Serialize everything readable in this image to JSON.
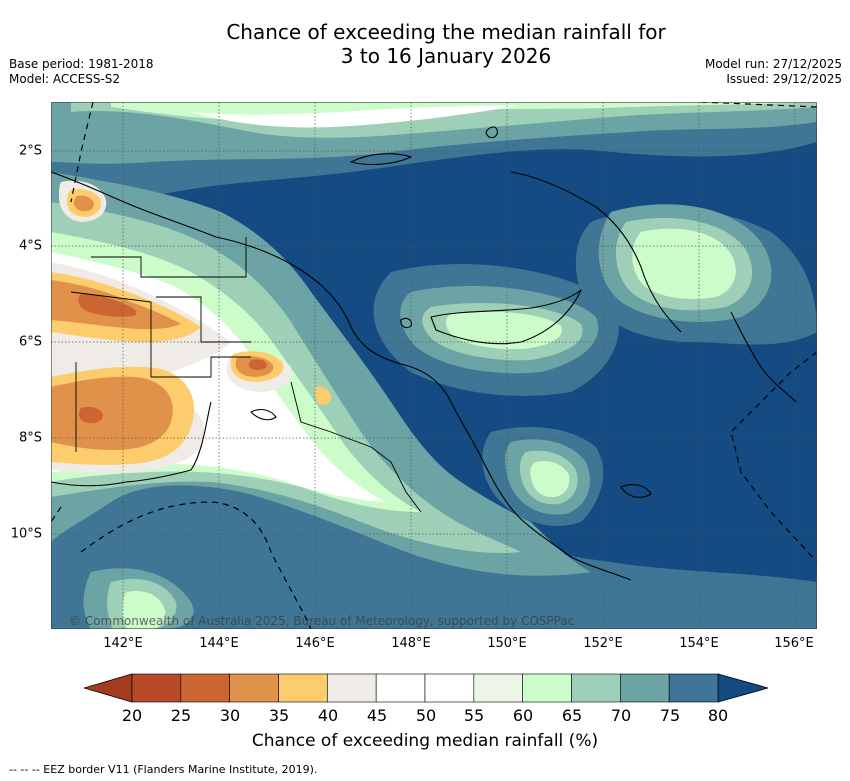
{
  "title": {
    "line1": "Chance of exceeding the median rainfall for",
    "line2": "3 to 16 January 2026"
  },
  "meta_left": {
    "base_period": "Base period: 1981-2018",
    "model": "Model: ACCESS-S2"
  },
  "meta_right": {
    "model_run": "Model run: 27/12/2025",
    "issued": "Issued: 29/12/2025"
  },
  "axes": {
    "lat_labels": [
      "2°S",
      "4°S",
      "6°S",
      "8°S",
      "10°S"
    ],
    "lon_labels": [
      "142°E",
      "144°E",
      "146°E",
      "148°E",
      "150°E",
      "152°E",
      "154°E",
      "156°E"
    ]
  },
  "copyright": "© Commonwealth of Australia 2025, Bureau of Meteorology, supported by COSPPac",
  "colorbar": {
    "ticks": [
      "20",
      "25",
      "30",
      "35",
      "40",
      "45",
      "50",
      "55",
      "60",
      "65",
      "70",
      "75",
      "80"
    ],
    "colors": [
      "#a53c1d",
      "#b84a27",
      "#cb6633",
      "#e0924a",
      "#fdcc6c",
      "#efebe6",
      "#ffffff",
      "#ffffff",
      "#ebf6e9",
      "#ccfcc9",
      "#9ecfb7",
      "#6ca4a5",
      "#3f7595",
      "#134b82"
    ],
    "label": "Chance of exceeding median rainfall (%)"
  },
  "legend": {
    "eez": "-- -- -- EEZ border V11 (Flanders Marine Institute, 2019)."
  }
}
